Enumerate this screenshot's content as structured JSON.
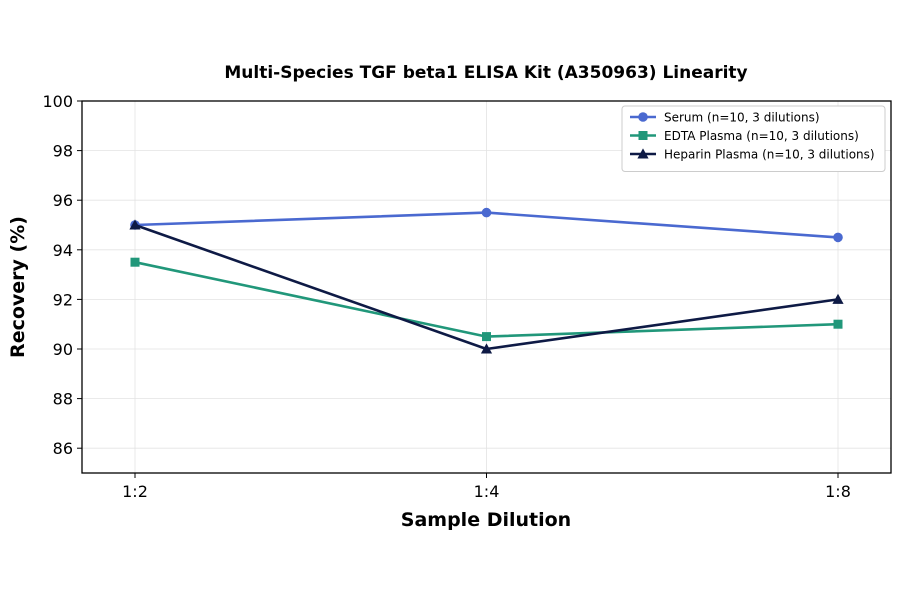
{
  "chart_data": {
    "type": "line",
    "title": "Multi-Species TGF beta1 ELISA Kit (A350963) Linearity",
    "xlabel": "Sample Dilution",
    "ylabel": "Recovery (%)",
    "categories": [
      "1:2",
      "1:4",
      "1:8"
    ],
    "ylim": [
      85,
      100
    ],
    "yticks": [
      86,
      88,
      90,
      92,
      94,
      96,
      98,
      100
    ],
    "grid": true,
    "legend_position": "top-right",
    "series": [
      {
        "name": "Serum (n=10, 3 dilutions)",
        "values": [
          95.0,
          95.5,
          94.5
        ],
        "color": "#4a69d0",
        "marker": "circle"
      },
      {
        "name": "EDTA Plasma (n=10, 3 dilutions)",
        "values": [
          93.5,
          90.5,
          91.0
        ],
        "color": "#21977a",
        "marker": "square"
      },
      {
        "name": "Heparin Plasma (n=10, 3 dilutions)",
        "values": [
          95.0,
          90.0,
          92.0
        ],
        "color": "#0e1a45",
        "marker": "triangle"
      }
    ]
  }
}
